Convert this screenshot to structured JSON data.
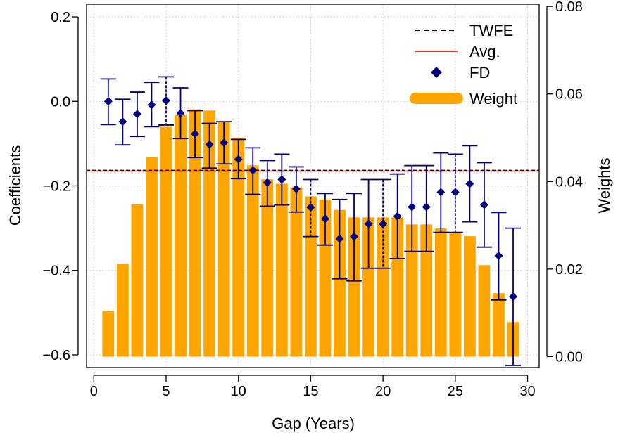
{
  "chart_data": {
    "type": "bar",
    "title": "",
    "xlabel": "Gap (Years)",
    "ylabel": "Coefficients",
    "y2label": "Weights",
    "xlim": [
      -0.5,
      30.8
    ],
    "ylim": [
      -0.63,
      0.23
    ],
    "y2lim": [
      -0.0025,
      0.0805
    ],
    "xticks": [
      0,
      5,
      10,
      15,
      20,
      25,
      30
    ],
    "xtick_labels": [
      "0",
      "5",
      "10",
      "15",
      "20",
      "25",
      "30"
    ],
    "yticks": [
      0.2,
      0.0,
      -0.2,
      -0.4,
      -0.6
    ],
    "ytick_labels": [
      "0.2",
      "0.0",
      "−0.2",
      "−0.4",
      "−0.6"
    ],
    "y2ticks": [
      0.08,
      0.06,
      0.04,
      0.02,
      0.0
    ],
    "y2tick_labels": [
      "0.08",
      "0.06",
      "0.04",
      "0.02",
      "0.00"
    ],
    "grid": true,
    "legend_position": "top-right",
    "legend": [
      {
        "label": "TWFE",
        "style": "dashed-line"
      },
      {
        "label": "Avg.",
        "style": "solid-line"
      },
      {
        "label": "FD",
        "style": "diamond"
      },
      {
        "label": "Weight",
        "style": "thick-bar"
      }
    ],
    "colors": {
      "twfe": "#000000",
      "avg": "#e41a1c",
      "fd": "#000080",
      "weight": "#ffa500",
      "grid": "#bfbfbf"
    },
    "twfe_value": -0.163,
    "avg_value": -0.165,
    "x": [
      1,
      2,
      3,
      4,
      5,
      6,
      7,
      8,
      9,
      10,
      11,
      12,
      13,
      14,
      15,
      16,
      17,
      18,
      19,
      20,
      21,
      22,
      23,
      24,
      25,
      26,
      27,
      28,
      29
    ],
    "series": [
      {
        "name": "FD",
        "axis": "left",
        "values": [
          0.0,
          -0.048,
          -0.03,
          -0.008,
          0.002,
          -0.028,
          -0.077,
          -0.102,
          -0.098,
          -0.137,
          -0.163,
          -0.192,
          -0.185,
          -0.207,
          -0.251,
          -0.278,
          -0.325,
          -0.32,
          -0.29,
          -0.29,
          -0.272,
          -0.25,
          -0.25,
          -0.215,
          -0.215,
          -0.195,
          -0.245,
          -0.365,
          -0.462
        ],
        "lower": [
          -0.055,
          -0.103,
          -0.083,
          -0.06,
          -0.056,
          -0.088,
          -0.133,
          -0.158,
          -0.148,
          -0.183,
          -0.22,
          -0.248,
          -0.245,
          -0.262,
          -0.32,
          -0.34,
          -0.42,
          -0.425,
          -0.395,
          -0.395,
          -0.372,
          -0.355,
          -0.355,
          -0.31,
          -0.31,
          -0.285,
          -0.345,
          -0.47,
          -0.625
        ],
        "upper": [
          0.053,
          0.005,
          0.022,
          0.045,
          0.058,
          0.032,
          -0.022,
          -0.052,
          -0.048,
          -0.09,
          -0.11,
          -0.14,
          -0.125,
          -0.155,
          -0.185,
          -0.218,
          -0.232,
          -0.218,
          -0.185,
          -0.185,
          -0.172,
          -0.152,
          -0.152,
          -0.122,
          -0.125,
          -0.105,
          -0.145,
          -0.263,
          -0.3
        ]
      },
      {
        "name": "Weight",
        "axis": "right",
        "values": [
          0.0104,
          0.0212,
          0.0348,
          0.0455,
          0.0525,
          0.0553,
          0.0565,
          0.0562,
          0.0537,
          0.05,
          0.0437,
          0.0405,
          0.0395,
          0.0387,
          0.0366,
          0.0359,
          0.0335,
          0.0318,
          0.0318,
          0.0318,
          0.0318,
          0.0302,
          0.0302,
          0.0293,
          0.0284,
          0.0275,
          0.0209,
          0.0145,
          0.0079
        ]
      }
    ]
  }
}
